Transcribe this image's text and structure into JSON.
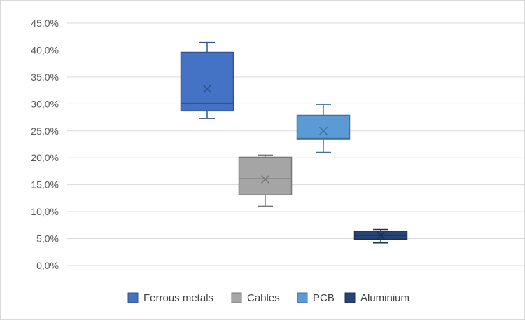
{
  "chart_data": {
    "type": "box",
    "title": "",
    "xlabel": "",
    "ylabel": "",
    "ylim": [
      0,
      45
    ],
    "y_ticks": [
      0,
      5,
      10,
      15,
      20,
      25,
      30,
      35,
      40,
      45
    ],
    "y_tick_labels": [
      "0,0%",
      "5,0%",
      "10,0%",
      "15,0%",
      "20,0%",
      "25,0%",
      "30,0%",
      "35,0%",
      "40,0%",
      "45,0%"
    ],
    "grid": true,
    "legend_position": "bottom",
    "series": [
      {
        "name": "Ferrous metals",
        "color": "#4472C4",
        "min": 27.3,
        "q1": 28.7,
        "median": 30.1,
        "q3": 39.6,
        "max": 41.4,
        "mean": 32.8
      },
      {
        "name": "Cables",
        "color": "#A5A5A5",
        "min": 11.0,
        "q1": 13.1,
        "median": 16.1,
        "q3": 20.1,
        "max": 20.5,
        "mean": 16.0
      },
      {
        "name": "PCB",
        "color": "#5B9BD5",
        "min": 21.0,
        "q1": 23.4,
        "median": 23.6,
        "q3": 27.9,
        "max": 29.9,
        "mean": 25.0
      },
      {
        "name": "Aluminium",
        "color": "#264478",
        "min": 4.2,
        "q1": 4.9,
        "median": 5.6,
        "q3": 6.4,
        "max": 6.7,
        "mean": 5.6
      }
    ]
  }
}
